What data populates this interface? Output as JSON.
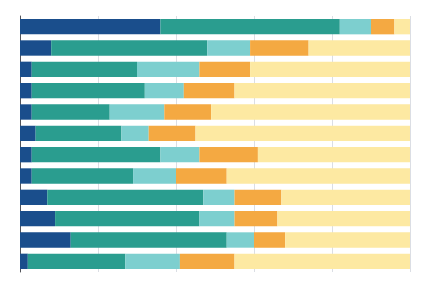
{
  "chart_data": {
    "type": "bar",
    "orientation": "horizontal",
    "stacked": true,
    "categories": [
      null,
      null,
      null,
      null,
      null,
      null,
      null,
      null,
      null,
      null,
      null,
      null
    ],
    "series": [
      {
        "color": "#1a4e8c",
        "values": [
          36,
          8,
          3,
          3,
          3,
          4,
          3,
          3,
          7,
          9,
          13,
          2
        ]
      },
      {
        "color": "#2a9d8f",
        "values": [
          46,
          40,
          27,
          29,
          20,
          22,
          33,
          26,
          40,
          37,
          40,
          25
        ]
      },
      {
        "color": "#7dcfcf",
        "values": [
          8,
          11,
          16,
          10,
          14,
          7,
          10,
          11,
          8,
          9,
          7,
          14
        ]
      },
      {
        "color": "#f4a942",
        "values": [
          6,
          15,
          13,
          13,
          12,
          12,
          15,
          13,
          12,
          11,
          8,
          14
        ]
      },
      {
        "color": "#fde9a2",
        "values": [
          4,
          26,
          41,
          45,
          51,
          55,
          39,
          47,
          33,
          34,
          32,
          45
        ]
      }
    ],
    "xlim": [
      0,
      100
    ],
    "xticks": [
      0,
      20,
      40,
      60,
      80,
      100
    ],
    "grid": true,
    "tick_labels": false
  }
}
